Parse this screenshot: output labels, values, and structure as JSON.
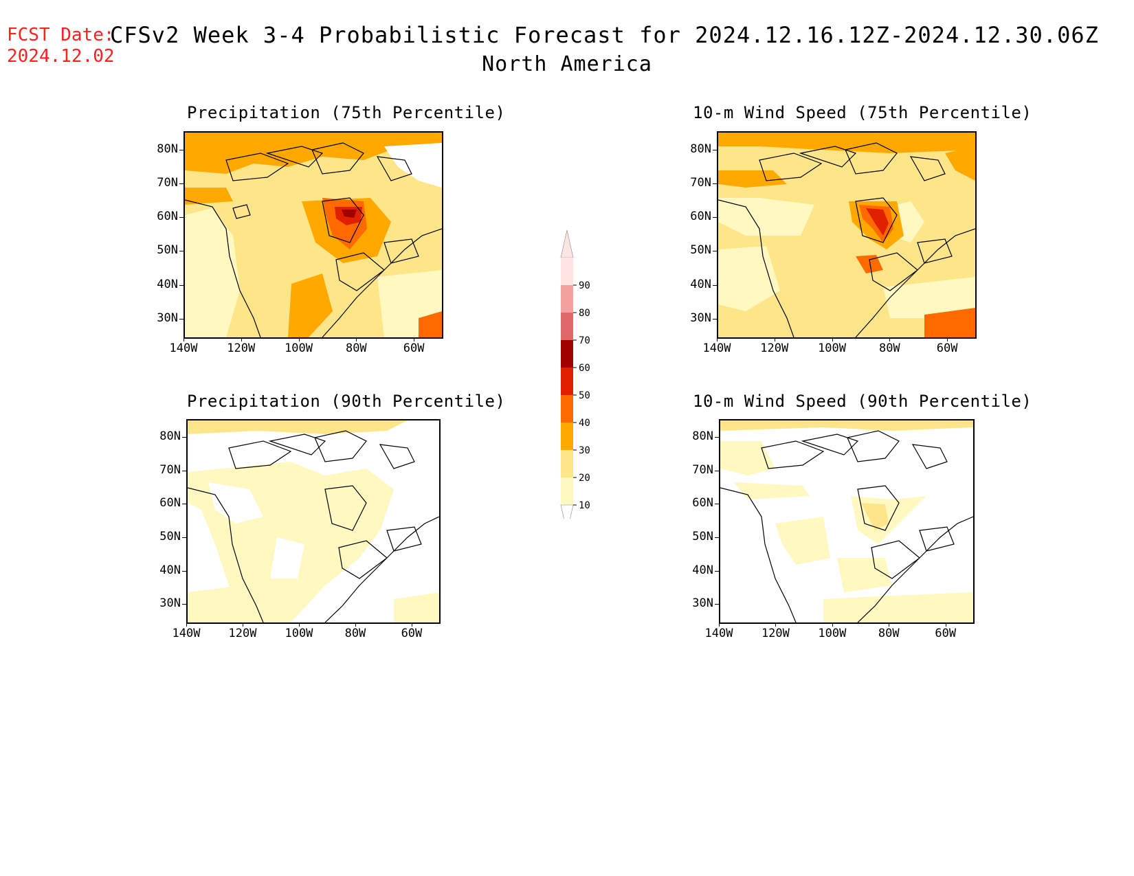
{
  "header": {
    "fcst_label": "FCST Date:",
    "fcst_date": "2024.12.02",
    "title": "CFSv2 Week 3-4 Probabilistic Forecast for 2024.12.16.12Z-2024.12.30.06Z",
    "region": "North America"
  },
  "panels": [
    {
      "id": "precip75",
      "title": "Precipitation (75th Percentile)"
    },
    {
      "id": "wind75",
      "title": "10-m Wind Speed (75th Percentile)"
    },
    {
      "id": "precip90",
      "title": "Precipitation (90th Percentile)"
    },
    {
      "id": "wind90",
      "title": "10-m Wind Speed (90th Percentile)"
    }
  ],
  "axes": {
    "lat_labels": [
      "80N",
      "70N",
      "60N",
      "50N",
      "40N",
      "30N"
    ],
    "lon_labels": [
      "140W",
      "120W",
      "100W",
      "80W",
      "60W"
    ]
  },
  "colorbar": {
    "levels": [
      "10",
      "20",
      "30",
      "40",
      "50",
      "60",
      "70",
      "80",
      "90"
    ],
    "colors": [
      "#fff8c0",
      "#fde68a",
      "#ffa800",
      "#ff6a00",
      "#e02000",
      "#a00000",
      "#e06868",
      "#f4a0a0",
      "#ffe4e4"
    ]
  },
  "colors": {
    "c10": "#fff8c0",
    "c20": "#fde68a",
    "c30": "#ffa800",
    "c40": "#ff6a00",
    "c50": "#e02000",
    "c60": "#a00000",
    "fcst_red": "#ff2020"
  }
}
